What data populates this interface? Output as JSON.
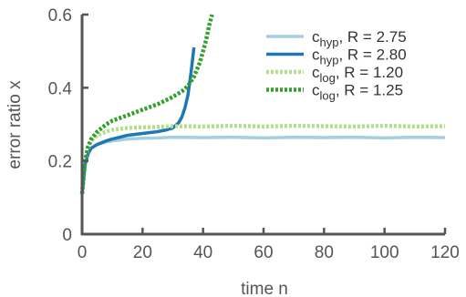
{
  "chart_data": {
    "type": "line",
    "xlabel": "time n",
    "ylabel": "error ratio x",
    "xlim": [
      0,
      120
    ],
    "ylim": [
      0,
      0.6
    ],
    "x_ticks": [
      "0",
      "20",
      "40",
      "60",
      "80",
      "100",
      "120"
    ],
    "y_ticks": [
      "0",
      "0.2",
      "0.4",
      "0.6"
    ],
    "grid": false,
    "legend_position": "top-right",
    "series": [
      {
        "name": "c_hyp, R = 2.75",
        "legend_base": "c",
        "legend_sub": "hyp",
        "legend_rest": ", R = 2.75",
        "color": "#a6cee3",
        "style": "solid",
        "x": [
          0,
          1,
          2,
          3,
          5,
          8,
          10,
          15,
          20,
          25,
          30,
          40,
          50,
          60,
          70,
          80,
          90,
          100,
          110,
          120
        ],
        "y": [
          0.11,
          0.19,
          0.22,
          0.235,
          0.245,
          0.252,
          0.255,
          0.26,
          0.262,
          0.263,
          0.265,
          0.264,
          0.265,
          0.263,
          0.265,
          0.264,
          0.265,
          0.263,
          0.265,
          0.264
        ]
      },
      {
        "name": "c_hyp, R = 2.80",
        "legend_base": "c",
        "legend_sub": "hyp",
        "legend_rest": ", R = 2.80",
        "color": "#1f78b4",
        "style": "solid",
        "x": [
          0,
          1,
          2,
          3,
          5,
          8,
          10,
          15,
          20,
          25,
          28,
          30,
          32,
          33,
          34,
          35,
          36,
          37
        ],
        "y": [
          0.11,
          0.19,
          0.22,
          0.235,
          0.245,
          0.255,
          0.26,
          0.27,
          0.275,
          0.28,
          0.285,
          0.29,
          0.305,
          0.32,
          0.345,
          0.38,
          0.44,
          0.51
        ]
      },
      {
        "name": "c_log, R = 1.20",
        "legend_base": "c",
        "legend_sub": "log",
        "legend_rest": ", R = 1.20",
        "color": "#b2df8a",
        "style": "dotted",
        "x": [
          0,
          1,
          2,
          3,
          5,
          8,
          10,
          15,
          20,
          25,
          30,
          40,
          50,
          60,
          70,
          80,
          90,
          100,
          110,
          120
        ],
        "y": [
          0.11,
          0.2,
          0.235,
          0.255,
          0.27,
          0.28,
          0.285,
          0.29,
          0.292,
          0.293,
          0.295,
          0.294,
          0.296,
          0.294,
          0.296,
          0.295,
          0.294,
          0.296,
          0.294,
          0.295
        ]
      },
      {
        "name": "c_log, R = 1.25",
        "legend_base": "c",
        "legend_sub": "log",
        "legend_rest": ", R = 1.25",
        "color": "#33a02c",
        "style": "dotted",
        "x": [
          0,
          1,
          2,
          3,
          5,
          8,
          10,
          15,
          20,
          25,
          30,
          33,
          35,
          37,
          39,
          40,
          41,
          42,
          43
        ],
        "y": [
          0.11,
          0.2,
          0.24,
          0.26,
          0.28,
          0.3,
          0.31,
          0.325,
          0.34,
          0.355,
          0.375,
          0.39,
          0.405,
          0.43,
          0.47,
          0.5,
          0.53,
          0.57,
          0.6
        ]
      }
    ]
  }
}
